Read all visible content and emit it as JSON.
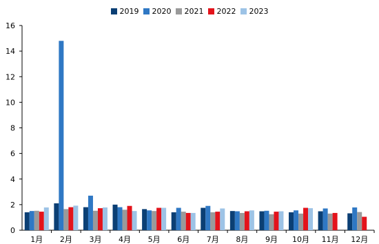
{
  "chart_data": {
    "type": "bar",
    "categories": [
      "1月",
      "2月",
      "3月",
      "4月",
      "5月",
      "6月",
      "7月",
      "8月",
      "9月",
      "10月",
      "11月",
      "12月"
    ],
    "series": [
      {
        "name": "2019",
        "color": "#0b3f74",
        "values": [
          1.4,
          2.1,
          1.8,
          2.0,
          1.65,
          1.4,
          1.75,
          1.5,
          1.48,
          1.4,
          1.48,
          1.32
        ]
      },
      {
        "name": "2020",
        "color": "#2f78c4",
        "values": [
          1.5,
          14.8,
          2.7,
          1.8,
          1.55,
          1.75,
          1.9,
          1.48,
          1.52,
          1.55,
          1.7,
          1.78
        ]
      },
      {
        "name": "2021",
        "color": "#9a9a9a",
        "values": [
          1.52,
          1.65,
          1.52,
          1.6,
          1.5,
          1.45,
          1.4,
          1.35,
          1.25,
          1.3,
          1.3,
          1.42
        ]
      },
      {
        "name": "2022",
        "color": "#e3131b",
        "values": [
          1.45,
          1.8,
          1.72,
          1.9,
          1.75,
          1.35,
          1.45,
          1.48,
          1.45,
          1.75,
          1.35,
          1.05
        ]
      },
      {
        "name": "2023",
        "color": "#9dc3e6",
        "values": [
          1.78,
          1.92,
          1.78,
          1.5,
          1.75,
          1.35,
          1.7,
          1.55,
          1.48,
          1.72,
          null,
          null
        ]
      }
    ],
    "yticks": [
      "0",
      "2",
      "4",
      "6",
      "8",
      "10",
      "12",
      "14",
      "16"
    ],
    "ylim": [
      0,
      16
    ],
    "grid": false,
    "legend": "top"
  }
}
